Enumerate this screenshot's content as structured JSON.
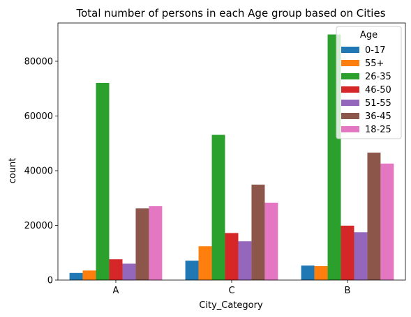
{
  "chart_data": {
    "type": "bar",
    "title": "Total number of persons in each Age group based on Cities",
    "xlabel": "City_Category",
    "ylabel": "count",
    "categories": [
      "A",
      "C",
      "B"
    ],
    "ylim": [
      0,
      94000
    ],
    "yticks": [
      0,
      20000,
      40000,
      60000,
      80000
    ],
    "legend": {
      "title": "Age",
      "placement": "top-right"
    },
    "series": [
      {
        "name": "0-17",
        "color": "#1f77b4",
        "values": [
          2600,
          7100,
          5300
        ]
      },
      {
        "name": "55+",
        "color": "#ff7f0e",
        "values": [
          3500,
          12400,
          5100
        ]
      },
      {
        "name": "26-35",
        "color": "#2ca02c",
        "values": [
          72100,
          53100,
          89800
        ]
      },
      {
        "name": "46-50",
        "color": "#d62728",
        "values": [
          7600,
          17200,
          19900
        ]
      },
      {
        "name": "51-55",
        "color": "#9467bd",
        "values": [
          6000,
          14200,
          17500
        ]
      },
      {
        "name": "36-45",
        "color": "#8c564b",
        "values": [
          26200,
          34900,
          46600
        ]
      },
      {
        "name": "18-25",
        "color": "#e377c2",
        "values": [
          27000,
          28300,
          42600
        ]
      }
    ]
  }
}
